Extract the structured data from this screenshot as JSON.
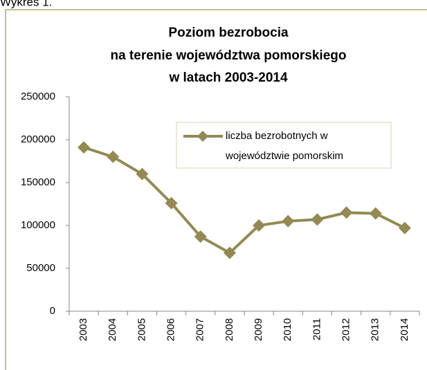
{
  "caption": "Wykres 1.",
  "chart_data": {
    "type": "line",
    "title": [
      "Poziom bezrobocia",
      "na terenie województwa pomorskiego",
      "w latach 2003-2014"
    ],
    "categories": [
      "2003",
      "2004",
      "2005",
      "2006",
      "2007",
      "2008",
      "2009",
      "2010",
      "2011",
      "2012",
      "2013",
      "2014"
    ],
    "series": [
      {
        "name": [
          "liczba bezrobotnych w",
          "województwie pomorskim"
        ],
        "color": "#938953",
        "values": [
          191000,
          180000,
          160000,
          126000,
          87000,
          68000,
          100000,
          105000,
          107000,
          115000,
          114000,
          97000
        ]
      }
    ],
    "ylim": [
      0,
      250000
    ],
    "yticks": [
      0,
      50000,
      100000,
      150000,
      200000,
      250000
    ],
    "grid": false,
    "legend": "upper right"
  }
}
